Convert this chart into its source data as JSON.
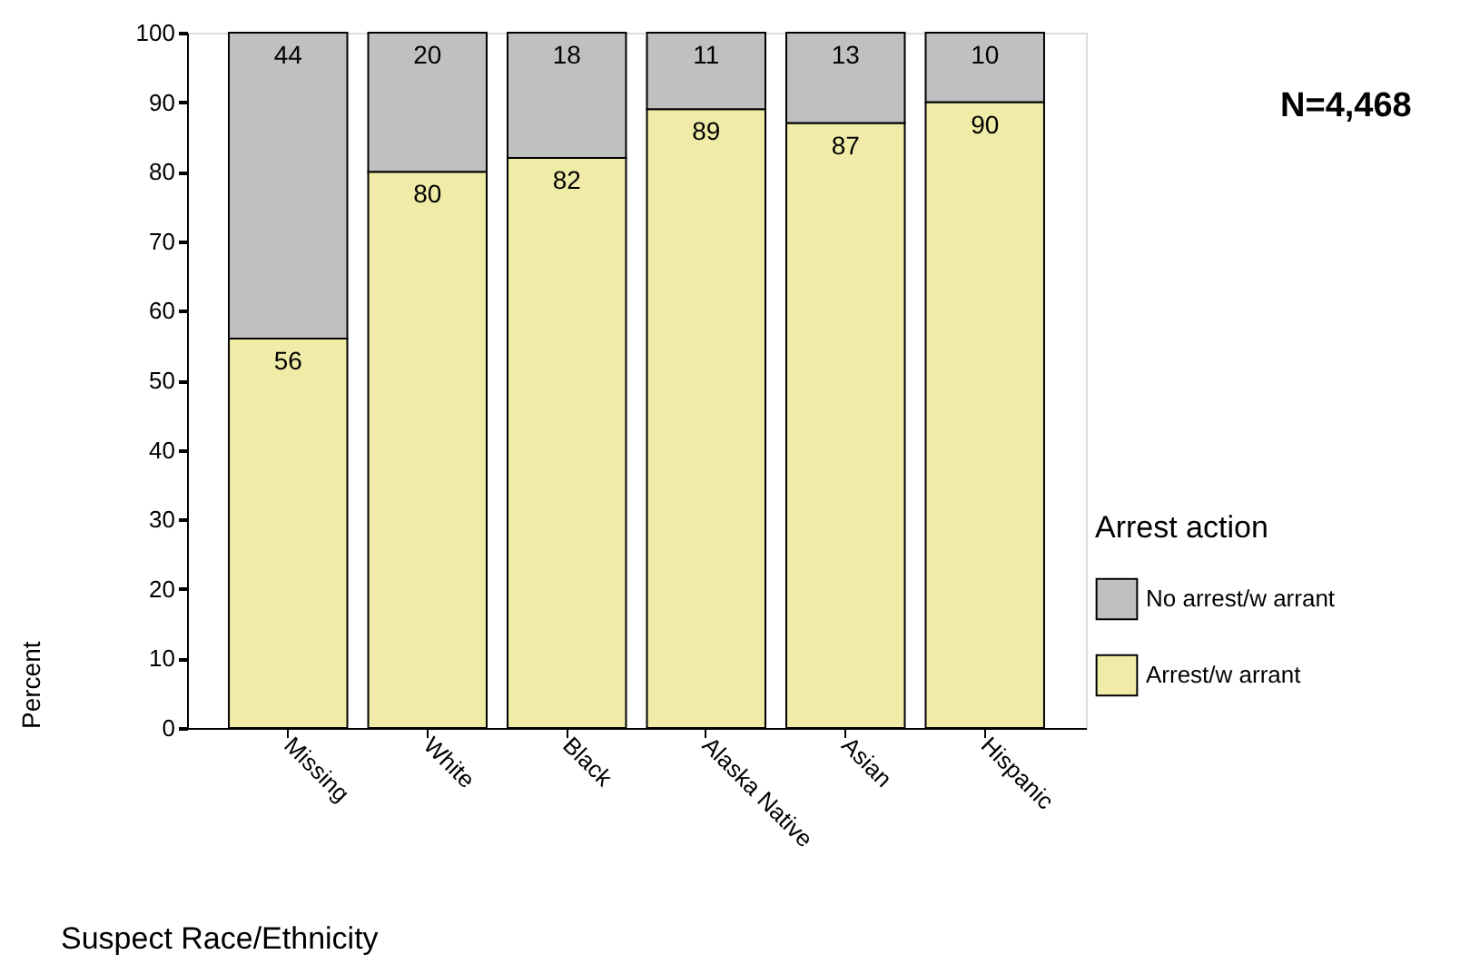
{
  "chart_data": {
    "type": "bar",
    "stacked": true,
    "xlabel": "Suspect Race/Ethnicity",
    "ylabel": "Percent",
    "legend_title": "Arrest action",
    "legend": "right",
    "categories": [
      "Missing",
      "White",
      "Black",
      "Alaska Native",
      "Asian",
      "Hispanic"
    ],
    "series": [
      {
        "name": "Arrest/w arrant",
        "color": "#f0eca8",
        "values": [
          56,
          80,
          82,
          89,
          87,
          90
        ]
      },
      {
        "name": "No arrest/w arrant",
        "color": "#c0c0c0",
        "values": [
          44,
          20,
          18,
          11,
          13,
          10
        ]
      }
    ],
    "ylim": [
      0,
      100
    ],
    "yticks": [
      0,
      10,
      20,
      30,
      40,
      50,
      60,
      70,
      80,
      90,
      100
    ],
    "grid": false,
    "data_labels": true,
    "annotations": [
      "N=4,468"
    ]
  }
}
